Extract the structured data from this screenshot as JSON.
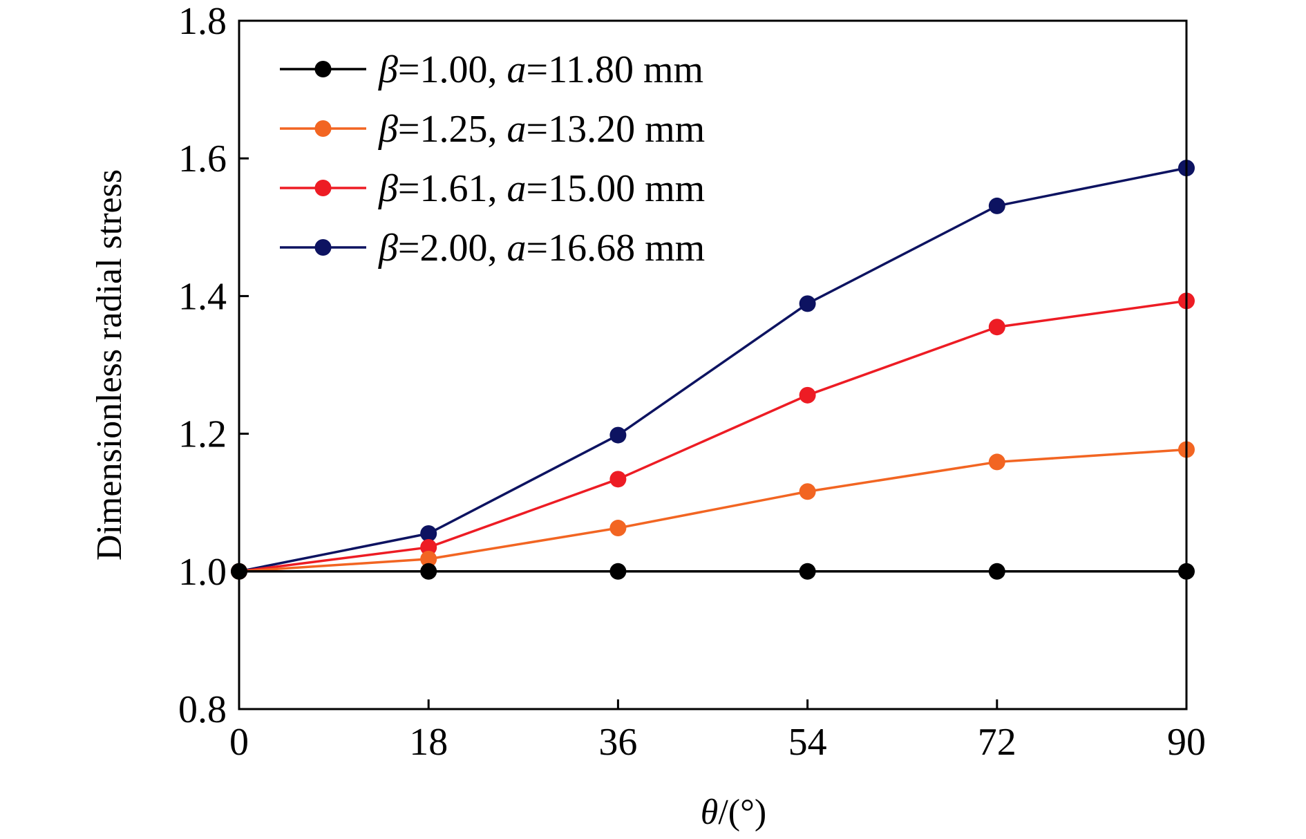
{
  "chart_data": {
    "type": "line",
    "title": "",
    "xlabel": "θ/(°)",
    "ylabel": "Dimensionless radial stress",
    "xlim": [
      0,
      90
    ],
    "ylim": [
      0.8,
      1.8
    ],
    "x": [
      0,
      18,
      36,
      54,
      72,
      90
    ],
    "x_ticks": [
      "0",
      "18",
      "36",
      "54",
      "72",
      "90"
    ],
    "y_ticks": [
      "0.8",
      "1.0",
      "1.2",
      "1.4",
      "1.6",
      "1.8"
    ],
    "grid": false,
    "legend_position": "top-left",
    "series": [
      {
        "name": "β=1.00, a=11.80 mm",
        "beta": "1.00",
        "a_value": "11.80",
        "color": "#000000",
        "values": [
          1.0,
          1.0,
          1.0,
          1.0,
          1.0,
          1.0
        ]
      },
      {
        "name": "β=1.25, a=13.20 mm",
        "beta": "1.25",
        "a_value": "13.20",
        "color": "#f26522",
        "values": [
          1.0,
          1.018,
          1.063,
          1.116,
          1.159,
          1.177
        ]
      },
      {
        "name": "β=1.61, a=15.00 mm",
        "beta": "1.61",
        "a_value": "15.00",
        "color": "#ed1c24",
        "values": [
          1.0,
          1.035,
          1.134,
          1.256,
          1.355,
          1.393
        ]
      },
      {
        "name": "β=2.00, a=16.68 mm",
        "beta": "2.00",
        "a_value": "16.68",
        "color": "#0d1361",
        "values": [
          1.0,
          1.055,
          1.198,
          1.389,
          1.531,
          1.586
        ]
      }
    ]
  }
}
